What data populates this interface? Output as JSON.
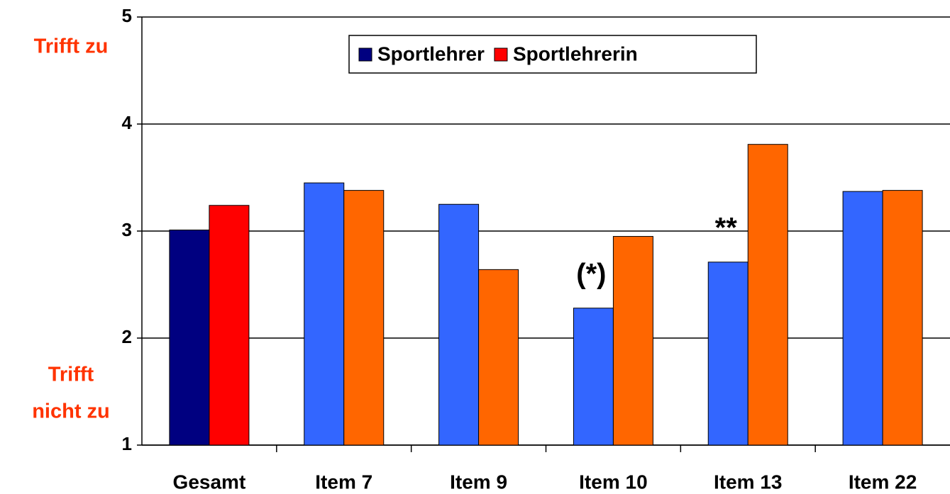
{
  "chart_data": {
    "type": "bar",
    "categories": [
      "Gesamt",
      "Item 7",
      "Item 9",
      "Item 10",
      "Item 13",
      "Item 22"
    ],
    "series": [
      {
        "name": "Sportlehrer",
        "color": "#000080",
        "point_colors": [
          "#000080",
          "#3366ff",
          "#3366ff",
          "#3366ff",
          "#3366ff",
          "#3366ff"
        ],
        "values": [
          3.01,
          3.45,
          3.25,
          2.28,
          2.71,
          3.37
        ]
      },
      {
        "name": "Sportlehrerin",
        "color": "#ff0000",
        "point_colors": [
          "#ff0000",
          "#ff6600",
          "#ff6600",
          "#ff6600",
          "#ff6600",
          "#ff6600"
        ],
        "values": [
          3.24,
          3.38,
          2.64,
          2.95,
          3.81,
          3.38
        ]
      }
    ],
    "ylim": [
      1,
      5
    ],
    "yticks": [
      1,
      2,
      3,
      4,
      5
    ],
    "grid": true,
    "y_label_top": "Trifft zu",
    "y_label_bottom": [
      "Trifft",
      "nicht zu"
    ],
    "annotations": [
      {
        "text": "(*)",
        "category": "Item 10"
      },
      {
        "text": "**",
        "category": "Item 13"
      }
    ],
    "legend": "top"
  }
}
